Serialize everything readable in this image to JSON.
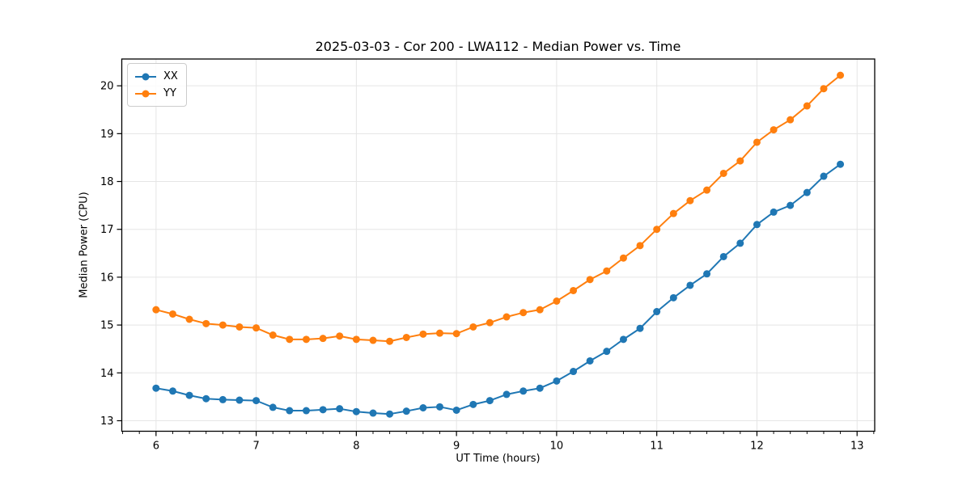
{
  "title": "2025-03-03 - Cor 200 - LWA112 - Median Power vs. Time",
  "legend": {
    "entries": [
      {
        "label": "XX",
        "color": "#1f77b4"
      },
      {
        "label": "YY",
        "color": "#ff7f0e"
      }
    ]
  },
  "chart_data": {
    "type": "line",
    "title": "2025-03-03 - Cor 200 - LWA112 - Median Power vs. Time",
    "xlabel": "UT Time (hours)",
    "ylabel": "Median Power (CPU)",
    "xlim": [
      5.658,
      13.176
    ],
    "ylim": [
      12.78,
      20.56
    ],
    "xticks": [
      6,
      7,
      8,
      9,
      10,
      11,
      12,
      13
    ],
    "yticks": [
      13,
      14,
      15,
      16,
      17,
      18,
      19,
      20
    ],
    "minor_xtick_step": 0.1666667,
    "grid": true,
    "grid_color": "#e5e5e5",
    "legend_position": "upper left",
    "marker": "o",
    "x": [
      6.0,
      6.167,
      6.333,
      6.5,
      6.667,
      6.833,
      7.0,
      7.167,
      7.333,
      7.5,
      7.667,
      7.833,
      8.0,
      8.167,
      8.333,
      8.5,
      8.667,
      8.833,
      9.0,
      9.167,
      9.333,
      9.5,
      9.667,
      9.833,
      10.0,
      10.167,
      10.333,
      10.5,
      10.667,
      10.833,
      11.0,
      11.167,
      11.333,
      11.5,
      11.667,
      11.833,
      12.0,
      12.167,
      12.333,
      12.5,
      12.667,
      12.833
    ],
    "series": [
      {
        "name": "XX",
        "color": "#1f77b4",
        "values": [
          13.68,
          13.62,
          13.53,
          13.46,
          13.44,
          13.43,
          13.42,
          13.28,
          13.21,
          13.21,
          13.23,
          13.25,
          13.19,
          13.16,
          13.14,
          13.2,
          13.27,
          13.29,
          13.22,
          13.34,
          13.42,
          13.55,
          13.62,
          13.68,
          13.83,
          14.03,
          14.25,
          14.45,
          14.7,
          14.93,
          15.28,
          15.57,
          15.83,
          16.07,
          16.43,
          16.71,
          17.1,
          17.36,
          17.5,
          17.77,
          18.11,
          18.36
        ]
      },
      {
        "name": "YY",
        "color": "#ff7f0e",
        "values": [
          15.32,
          15.23,
          15.12,
          15.03,
          15.0,
          14.96,
          14.94,
          14.79,
          14.7,
          14.7,
          14.72,
          14.77,
          14.7,
          14.68,
          14.66,
          14.74,
          14.81,
          14.83,
          14.82,
          14.96,
          15.05,
          15.17,
          15.26,
          15.32,
          15.5,
          15.72,
          15.95,
          16.13,
          16.4,
          16.66,
          17.0,
          17.33,
          17.6,
          17.82,
          18.17,
          18.43,
          18.82,
          19.08,
          19.29,
          19.58,
          19.94,
          20.22
        ]
      }
    ]
  }
}
